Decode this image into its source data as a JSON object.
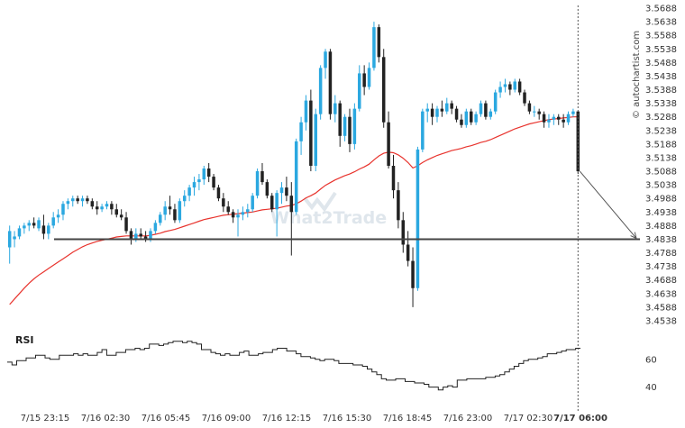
{
  "chart_data": {
    "type": "candlestick",
    "y_ticks": [
      "3.5688",
      "3.5638",
      "3.5588",
      "3.5538",
      "3.5488",
      "3.5438",
      "3.5388",
      "3.5338",
      "3.5288",
      "3.5238",
      "3.5188",
      "3.5138",
      "3.5088",
      "3.5038",
      "3.4988",
      "3.4938",
      "3.4888",
      "3.4838",
      "3.4788",
      "3.4738",
      "3.4688",
      "3.4638",
      "3.4588",
      "3.4538"
    ],
    "ylim": [
      3.4518,
      3.5698
    ],
    "x_ticks": [
      "7/15 23:15",
      "7/16 02:30",
      "7/16 05:45",
      "7/16 09:00",
      "7/16 12:15",
      "7/16 15:30",
      "7/16 18:45",
      "7/16 23:00",
      "7/17 02:30",
      "7/17 06:00"
    ],
    "support_level": 3.4838,
    "ma_label": "",
    "candles": [
      {
        "o": 3.4808,
        "h": 3.4888,
        "l": 3.4748,
        "c": 3.4868
      },
      {
        "o": 3.4838,
        "h": 3.4868,
        "l": 3.4808,
        "c": 3.4848
      },
      {
        "o": 3.4848,
        "h": 3.4888,
        "l": 3.4838,
        "c": 3.4878
      },
      {
        "o": 3.4878,
        "h": 3.4898,
        "l": 3.4858,
        "c": 3.4888
      },
      {
        "o": 3.4888,
        "h": 3.4908,
        "l": 3.4868,
        "c": 3.4898
      },
      {
        "o": 3.4898,
        "h": 3.4918,
        "l": 3.4878,
        "c": 3.4888
      },
      {
        "o": 3.4878,
        "h": 3.4918,
        "l": 3.4868,
        "c": 3.4908
      },
      {
        "o": 3.4888,
        "h": 3.4928,
        "l": 3.4838,
        "c": 3.4858
      },
      {
        "o": 3.4858,
        "h": 3.4898,
        "l": 3.4838,
        "c": 3.4888
      },
      {
        "o": 3.4888,
        "h": 3.4938,
        "l": 3.4878,
        "c": 3.4918
      },
      {
        "o": 3.4918,
        "h": 3.4948,
        "l": 3.4898,
        "c": 3.4928
      },
      {
        "o": 3.4928,
        "h": 3.4978,
        "l": 3.4908,
        "c": 3.4968
      },
      {
        "o": 3.4968,
        "h": 3.4988,
        "l": 3.4948,
        "c": 3.4978
      },
      {
        "o": 3.4978,
        "h": 3.4998,
        "l": 3.4958,
        "c": 3.4988
      },
      {
        "o": 3.4988,
        "h": 3.4998,
        "l": 3.4968,
        "c": 3.4978
      },
      {
        "o": 3.4978,
        "h": 3.4998,
        "l": 3.4958,
        "c": 3.4988
      },
      {
        "o": 3.4988,
        "h": 3.4998,
        "l": 3.4968,
        "c": 3.4978
      },
      {
        "o": 3.4978,
        "h": 3.4988,
        "l": 3.4948,
        "c": 3.4958
      },
      {
        "o": 3.4958,
        "h": 3.4978,
        "l": 3.4928,
        "c": 3.4948
      },
      {
        "o": 3.4948,
        "h": 3.4968,
        "l": 3.4938,
        "c": 3.4958
      },
      {
        "o": 3.4958,
        "h": 3.4978,
        "l": 3.4948,
        "c": 3.4968
      },
      {
        "o": 3.4968,
        "h": 3.4978,
        "l": 3.4928,
        "c": 3.4948
      },
      {
        "o": 3.4948,
        "h": 3.4968,
        "l": 3.4918,
        "c": 3.4928
      },
      {
        "o": 3.4928,
        "h": 3.4948,
        "l": 3.4908,
        "c": 3.4918
      },
      {
        "o": 3.4918,
        "h": 3.4938,
        "l": 3.4858,
        "c": 3.4868
      },
      {
        "o": 3.4868,
        "h": 3.4878,
        "l": 3.4818,
        "c": 3.4838
      },
      {
        "o": 3.4838,
        "h": 3.4878,
        "l": 3.4828,
        "c": 3.4858
      },
      {
        "o": 3.4858,
        "h": 3.4878,
        "l": 3.4838,
        "c": 3.4848
      },
      {
        "o": 3.4848,
        "h": 3.4868,
        "l": 3.4828,
        "c": 3.4838
      },
      {
        "o": 3.4838,
        "h": 3.4878,
        "l": 3.4828,
        "c": 3.4868
      },
      {
        "o": 3.4868,
        "h": 3.4908,
        "l": 3.4858,
        "c": 3.4898
      },
      {
        "o": 3.4898,
        "h": 3.4938,
        "l": 3.4888,
        "c": 3.4928
      },
      {
        "o": 3.4928,
        "h": 3.4978,
        "l": 3.4908,
        "c": 3.4958
      },
      {
        "o": 3.4958,
        "h": 3.4998,
        "l": 3.4928,
        "c": 3.4948
      },
      {
        "o": 3.4948,
        "h": 3.4968,
        "l": 3.4898,
        "c": 3.4908
      },
      {
        "o": 3.4908,
        "h": 3.4988,
        "l": 3.4898,
        "c": 3.4978
      },
      {
        "o": 3.4978,
        "h": 3.5018,
        "l": 3.4958,
        "c": 3.4998
      },
      {
        "o": 3.4998,
        "h": 3.5038,
        "l": 3.4978,
        "c": 3.5028
      },
      {
        "o": 3.5028,
        "h": 3.5068,
        "l": 3.4998,
        "c": 3.5048
      },
      {
        "o": 3.5048,
        "h": 3.5078,
        "l": 3.5018,
        "c": 3.5058
      },
      {
        "o": 3.5058,
        "h": 3.5108,
        "l": 3.5038,
        "c": 3.5098
      },
      {
        "o": 3.5098,
        "h": 3.5118,
        "l": 3.5048,
        "c": 3.5068
      },
      {
        "o": 3.5068,
        "h": 3.5078,
        "l": 3.5018,
        "c": 3.5028
      },
      {
        "o": 3.5028,
        "h": 3.5038,
        "l": 3.4978,
        "c": 3.4988
      },
      {
        "o": 3.4988,
        "h": 3.5008,
        "l": 3.4938,
        "c": 3.4958
      },
      {
        "o": 3.4958,
        "h": 3.4978,
        "l": 3.4928,
        "c": 3.4938
      },
      {
        "o": 3.4938,
        "h": 3.4948,
        "l": 3.4898,
        "c": 3.4918
      },
      {
        "o": 3.4918,
        "h": 3.4948,
        "l": 3.4848,
        "c": 3.4928
      },
      {
        "o": 3.4928,
        "h": 3.4958,
        "l": 3.4908,
        "c": 3.4938
      },
      {
        "o": 3.4938,
        "h": 3.4968,
        "l": 3.4918,
        "c": 3.4948
      },
      {
        "o": 3.4948,
        "h": 3.5008,
        "l": 3.4938,
        "c": 3.4998
      },
      {
        "o": 3.4998,
        "h": 3.5098,
        "l": 3.4988,
        "c": 3.5088
      },
      {
        "o": 3.5088,
        "h": 3.5118,
        "l": 3.5038,
        "c": 3.5048
      },
      {
        "o": 3.5048,
        "h": 3.5058,
        "l": 3.4988,
        "c": 3.4998
      },
      {
        "o": 3.4998,
        "h": 3.5008,
        "l": 3.4938,
        "c": 3.4948
      },
      {
        "o": 3.4948,
        "h": 3.5018,
        "l": 3.4848,
        "c": 3.5008
      },
      {
        "o": 3.5008,
        "h": 3.5048,
        "l": 3.4968,
        "c": 3.5028
      },
      {
        "o": 3.5028,
        "h": 3.5068,
        "l": 3.4978,
        "c": 3.4998
      },
      {
        "o": 3.4998,
        "h": 3.5048,
        "l": 3.4778,
        "c": 3.4938
      },
      {
        "o": 3.4938,
        "h": 3.5208,
        "l": 3.4928,
        "c": 3.5198
      },
      {
        "o": 3.5198,
        "h": 3.5288,
        "l": 3.5148,
        "c": 3.5268
      },
      {
        "o": 3.5268,
        "h": 3.5368,
        "l": 3.5238,
        "c": 3.5348
      },
      {
        "o": 3.5348,
        "h": 3.5388,
        "l": 3.5088,
        "c": 3.5108
      },
      {
        "o": 3.5108,
        "h": 3.5318,
        "l": 3.5088,
        "c": 3.5298
      },
      {
        "o": 3.5298,
        "h": 3.5478,
        "l": 3.5278,
        "c": 3.5468
      },
      {
        "o": 3.5468,
        "h": 3.5538,
        "l": 3.5428,
        "c": 3.5528
      },
      {
        "o": 3.5528,
        "h": 3.5538,
        "l": 3.5278,
        "c": 3.5298
      },
      {
        "o": 3.5298,
        "h": 3.5368,
        "l": 3.5268,
        "c": 3.5338
      },
      {
        "o": 3.5338,
        "h": 3.5348,
        "l": 3.5178,
        "c": 3.5218
      },
      {
        "o": 3.5218,
        "h": 3.5298,
        "l": 3.5198,
        "c": 3.5288
      },
      {
        "o": 3.5288,
        "h": 3.5318,
        "l": 3.5158,
        "c": 3.5188
      },
      {
        "o": 3.5188,
        "h": 3.5338,
        "l": 3.5168,
        "c": 3.5318
      },
      {
        "o": 3.5318,
        "h": 3.5478,
        "l": 3.5308,
        "c": 3.5448
      },
      {
        "o": 3.5448,
        "h": 3.5478,
        "l": 3.5368,
        "c": 3.5398
      },
      {
        "o": 3.5398,
        "h": 3.5488,
        "l": 3.5388,
        "c": 3.5468
      },
      {
        "o": 3.5468,
        "h": 3.5638,
        "l": 3.5458,
        "c": 3.5618
      },
      {
        "o": 3.5618,
        "h": 3.5628,
        "l": 3.5488,
        "c": 3.5508
      },
      {
        "o": 3.5508,
        "h": 3.5538,
        "l": 3.5248,
        "c": 3.5268
      },
      {
        "o": 3.5268,
        "h": 3.5308,
        "l": 3.5098,
        "c": 3.5108
      },
      {
        "o": 3.5108,
        "h": 3.5148,
        "l": 3.4988,
        "c": 3.5018
      },
      {
        "o": 3.5018,
        "h": 3.5048,
        "l": 3.4878,
        "c": 3.4908
      },
      {
        "o": 3.4908,
        "h": 3.4938,
        "l": 3.4788,
        "c": 3.4818
      },
      {
        "o": 3.4818,
        "h": 3.4868,
        "l": 3.4738,
        "c": 3.4758
      },
      {
        "o": 3.4758,
        "h": 3.4808,
        "l": 3.4588,
        "c": 3.4658
      },
      {
        "o": 3.4658,
        "h": 3.5178,
        "l": 3.4648,
        "c": 3.5168
      },
      {
        "o": 3.5168,
        "h": 3.5318,
        "l": 3.5158,
        "c": 3.5308
      },
      {
        "o": 3.5308,
        "h": 3.5338,
        "l": 3.5268,
        "c": 3.5318
      },
      {
        "o": 3.5318,
        "h": 3.5338,
        "l": 3.5258,
        "c": 3.5288
      },
      {
        "o": 3.5288,
        "h": 3.5328,
        "l": 3.5268,
        "c": 3.5318
      },
      {
        "o": 3.5318,
        "h": 3.5348,
        "l": 3.5288,
        "c": 3.5308
      },
      {
        "o": 3.5308,
        "h": 3.5358,
        "l": 3.5298,
        "c": 3.5338
      },
      {
        "o": 3.5338,
        "h": 3.5348,
        "l": 3.5298,
        "c": 3.5318
      },
      {
        "o": 3.5318,
        "h": 3.5328,
        "l": 3.5268,
        "c": 3.5278
      },
      {
        "o": 3.5278,
        "h": 3.5298,
        "l": 3.5248,
        "c": 3.5258
      },
      {
        "o": 3.5258,
        "h": 3.5318,
        "l": 3.5248,
        "c": 3.5308
      },
      {
        "o": 3.5308,
        "h": 3.5318,
        "l": 3.5258,
        "c": 3.5268
      },
      {
        "o": 3.5268,
        "h": 3.5308,
        "l": 3.5258,
        "c": 3.5298
      },
      {
        "o": 3.5298,
        "h": 3.5348,
        "l": 3.5288,
        "c": 3.5338
      },
      {
        "o": 3.5338,
        "h": 3.5348,
        "l": 3.5278,
        "c": 3.5288
      },
      {
        "o": 3.5288,
        "h": 3.5318,
        "l": 3.5278,
        "c": 3.5308
      },
      {
        "o": 3.5308,
        "h": 3.5388,
        "l": 3.5298,
        "c": 3.5378
      },
      {
        "o": 3.5378,
        "h": 3.5418,
        "l": 3.5358,
        "c": 3.5398
      },
      {
        "o": 3.5398,
        "h": 3.5428,
        "l": 3.5378,
        "c": 3.5408
      },
      {
        "o": 3.5408,
        "h": 3.5418,
        "l": 3.5368,
        "c": 3.5388
      },
      {
        "o": 3.5388,
        "h": 3.5428,
        "l": 3.5378,
        "c": 3.5418
      },
      {
        "o": 3.5418,
        "h": 3.5428,
        "l": 3.5368,
        "c": 3.5378
      },
      {
        "o": 3.5378,
        "h": 3.5388,
        "l": 3.5328,
        "c": 3.5338
      },
      {
        "o": 3.5338,
        "h": 3.5348,
        "l": 3.5298,
        "c": 3.5308
      },
      {
        "o": 3.5308,
        "h": 3.5328,
        "l": 3.5288,
        "c": 3.5308
      },
      {
        "o": 3.5308,
        "h": 3.5318,
        "l": 3.5278,
        "c": 3.5298
      },
      {
        "o": 3.5298,
        "h": 3.5308,
        "l": 3.5248,
        "c": 3.5268
      },
      {
        "o": 3.5268,
        "h": 3.5298,
        "l": 3.5248,
        "c": 3.5278
      },
      {
        "o": 3.5278,
        "h": 3.5298,
        "l": 3.5258,
        "c": 3.5288
      },
      {
        "o": 3.5288,
        "h": 3.5298,
        "l": 3.5258,
        "c": 3.5278
      },
      {
        "o": 3.5278,
        "h": 3.5298,
        "l": 3.5248,
        "c": 3.5268
      },
      {
        "o": 3.5268,
        "h": 3.5308,
        "l": 3.5258,
        "c": 3.5298
      },
      {
        "o": 3.5298,
        "h": 3.5318,
        "l": 3.5288,
        "c": 3.5308
      },
      {
        "o": 3.5308,
        "h": 3.5308,
        "l": 3.5078,
        "c": 3.5088
      }
    ],
    "ma": [
      3.4598,
      3.4618,
      3.4638,
      3.4658,
      3.4676,
      3.4692,
      3.4706,
      3.4718,
      3.473,
      3.4742,
      3.4754,
      3.4766,
      3.4778,
      3.479,
      3.48,
      3.481,
      3.4818,
      3.4824,
      3.483,
      3.4834,
      3.4838,
      3.4842,
      3.4846,
      3.4848,
      3.485,
      3.485,
      3.485,
      3.485,
      3.485,
      3.4852,
      3.4856,
      3.486,
      3.4866,
      3.487,
      3.4874,
      3.488,
      3.4886,
      3.4892,
      3.4898,
      3.4904,
      3.491,
      3.4914,
      3.4918,
      3.4922,
      3.4926,
      3.4928,
      3.493,
      3.4932,
      3.4934,
      3.4936,
      3.4938,
      3.4942,
      3.4946,
      3.4948,
      3.495,
      3.4952,
      3.4956,
      3.496,
      3.4962,
      3.4968,
      3.4978,
      3.499,
      3.4998,
      3.5008,
      3.5022,
      3.5036,
      3.5046,
      3.5056,
      3.5064,
      3.5072,
      3.5078,
      3.5086,
      3.5096,
      3.5104,
      3.5114,
      3.513,
      3.5144,
      3.5154,
      3.5158,
      3.5156,
      3.5148,
      3.5136,
      3.512,
      3.51,
      3.5108,
      3.512,
      3.513,
      3.5138,
      3.5146,
      3.5152,
      3.5158,
      3.5164,
      3.5168,
      3.5172,
      3.5178,
      3.5182,
      3.5188,
      3.5194,
      3.5198,
      3.5204,
      3.5212,
      3.522,
      3.5228,
      3.5236,
      3.5244,
      3.525,
      3.5256,
      3.5262,
      3.5266,
      3.527,
      3.5274,
      3.5278,
      3.528,
      3.5282,
      3.5284,
      3.5286,
      3.5288,
      3.5288
    ],
    "rsi": {
      "label": "RSI",
      "ticks": [
        60,
        40
      ],
      "ylim": [
        30,
        80
      ],
      "values": [
        58,
        56,
        59,
        59,
        61,
        61,
        63,
        63,
        61,
        60,
        60,
        63,
        63,
        63,
        64,
        63,
        64,
        63,
        63,
        65,
        67,
        63,
        63,
        65,
        65,
        67,
        67,
        68,
        67,
        68,
        71,
        71,
        70,
        71,
        72,
        73,
        73,
        72,
        73,
        72,
        71,
        67,
        67,
        65,
        64,
        63,
        64,
        63,
        63,
        65,
        66,
        63,
        63,
        64,
        65,
        65,
        67,
        68,
        68,
        66,
        66,
        64,
        62,
        62,
        61,
        60,
        59,
        60,
        60,
        59,
        57,
        57,
        57,
        56,
        56,
        55,
        53,
        51,
        49,
        46,
        45,
        45,
        46,
        46,
        44,
        44,
        43,
        43,
        42,
        40,
        40,
        38,
        40,
        41,
        40,
        45,
        45,
        46,
        46,
        46,
        46,
        47,
        47,
        48,
        49,
        51,
        53,
        55,
        57,
        59,
        60,
        60,
        61,
        62,
        64,
        64,
        65,
        66,
        67,
        67,
        68,
        68
      ]
    }
  },
  "labels": {
    "rsi": "RSI",
    "watermark": "What2Trade",
    "brand": "© autochartist.com"
  },
  "colors": {
    "bull": "#2ba8e0",
    "bear": "#222222",
    "ma": "#e8332d",
    "support": "#444444"
  }
}
